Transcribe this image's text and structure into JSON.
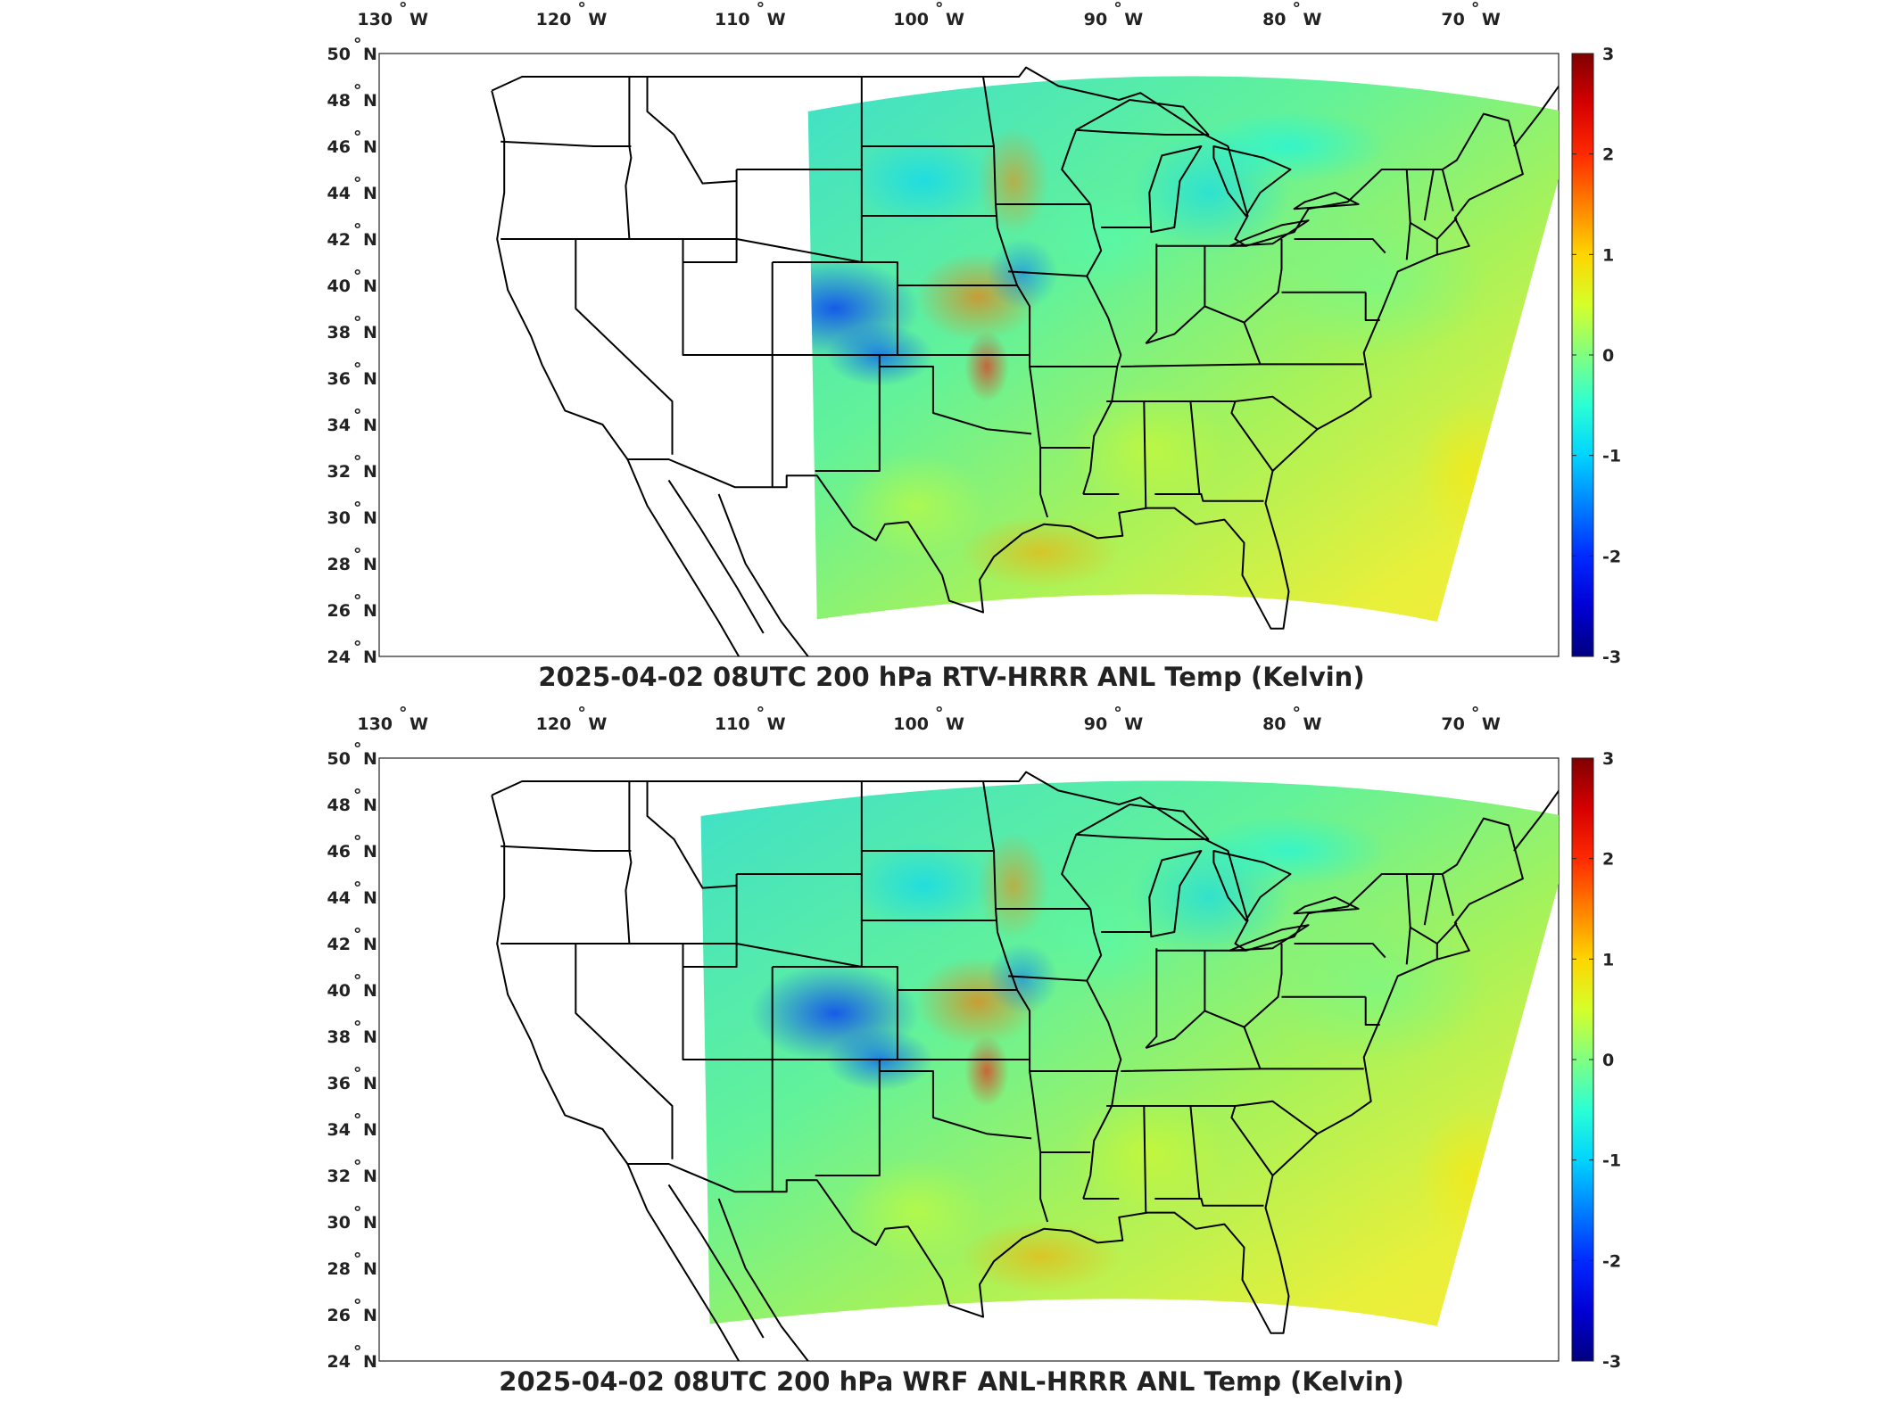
{
  "lon_ticks": [
    {
      "deg": "130",
      "dir": "W"
    },
    {
      "deg": "120",
      "dir": "W"
    },
    {
      "deg": "110",
      "dir": "W"
    },
    {
      "deg": "100",
      "dir": "W"
    },
    {
      "deg": "90",
      "dir": "W"
    },
    {
      "deg": "80",
      "dir": "W"
    },
    {
      "deg": "70",
      "dir": "W"
    }
  ],
  "lat_ticks": [
    {
      "deg": "50",
      "dir": "N"
    },
    {
      "deg": "48",
      "dir": "N"
    },
    {
      "deg": "46",
      "dir": "N"
    },
    {
      "deg": "44",
      "dir": "N"
    },
    {
      "deg": "42",
      "dir": "N"
    },
    {
      "deg": "40",
      "dir": "N"
    },
    {
      "deg": "38",
      "dir": "N"
    },
    {
      "deg": "36",
      "dir": "N"
    },
    {
      "deg": "34",
      "dir": "N"
    },
    {
      "deg": "32",
      "dir": "N"
    },
    {
      "deg": "30",
      "dir": "N"
    },
    {
      "deg": "28",
      "dir": "N"
    },
    {
      "deg": "26",
      "dir": "N"
    },
    {
      "deg": "24",
      "dir": "N"
    }
  ],
  "colorbar": {
    "ticks": [
      "3",
      "2",
      "1",
      "0",
      "-1",
      "-2",
      "-3"
    ],
    "colormap": "jet",
    "range": [
      -3,
      3
    ]
  },
  "maps": [
    {
      "title": "2025-04-02 08UTC 200 hPa RTV-HRRR ANL Temp (Kelvin)",
      "domain_west_lon": -107
    },
    {
      "title": "2025-04-02 08UTC 200 hPa WRF ANL-HRRR ANL Temp (Kelvin)",
      "domain_west_lon": -113
    }
  ]
}
